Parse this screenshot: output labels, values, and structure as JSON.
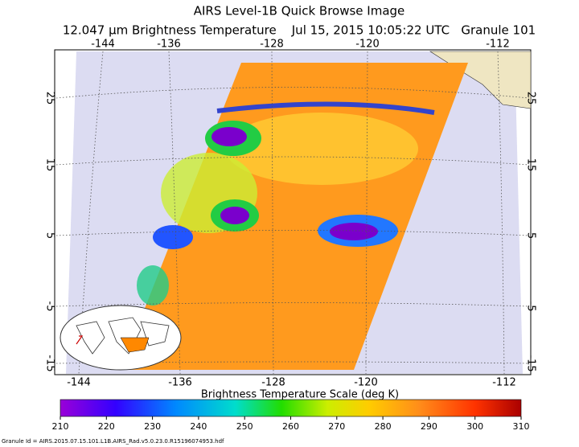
{
  "header": {
    "title": "AIRS Level-1B Quick Browse Image",
    "subtitle": "12.047 µm Brightness Temperature    Jul 15, 2015 10:05:22 UTC   Granule 101"
  },
  "map": {
    "lon_labels_top": [
      "-144",
      "-136",
      "-128",
      "-120",
      "-112"
    ],
    "lon_labels_bottom": [
      "-144",
      "-136",
      "-128",
      "-120",
      "-112"
    ],
    "lat_labels": [
      "25",
      "15",
      "5",
      "-5",
      "-15"
    ]
  },
  "colorbar": {
    "label": "Brightness Temperature Scale (deg K)",
    "ticks": [
      210,
      220,
      230,
      240,
      250,
      260,
      270,
      280,
      290,
      300,
      310
    ]
  },
  "footer": {
    "granule_id": "Granule Id = AIRS.2015.07.15.101.L1B.AIRS_Rad.v5.0.23.0.R15196074953.hdf"
  }
}
